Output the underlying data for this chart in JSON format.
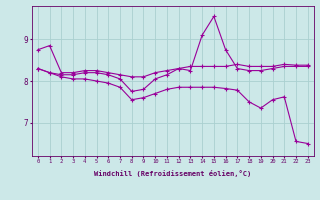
{
  "line1": {
    "x": [
      0,
      1,
      2,
      3,
      4,
      5,
      6,
      7,
      8,
      9,
      10,
      11,
      12,
      13,
      14,
      15,
      16,
      17,
      18,
      19,
      20,
      21,
      22,
      23
    ],
    "y": [
      8.75,
      8.85,
      8.2,
      8.2,
      8.25,
      8.25,
      8.2,
      8.15,
      8.1,
      8.1,
      8.2,
      8.25,
      8.3,
      8.35,
      8.35,
      8.35,
      8.35,
      8.4,
      8.35,
      8.35,
      8.35,
      8.4,
      8.38,
      8.38
    ]
  },
  "line2": {
    "x": [
      0,
      1,
      2,
      3,
      4,
      5,
      6,
      7,
      8,
      9,
      10,
      11,
      12,
      13,
      14,
      15,
      16,
      17,
      18,
      19,
      20,
      21,
      22,
      23
    ],
    "y": [
      8.3,
      8.2,
      8.15,
      8.15,
      8.2,
      8.2,
      8.15,
      8.05,
      7.75,
      7.8,
      8.05,
      8.15,
      8.3,
      8.25,
      9.1,
      9.55,
      8.75,
      8.3,
      8.25,
      8.25,
      8.3,
      8.35,
      8.35,
      8.35
    ]
  },
  "line3": {
    "x": [
      0,
      1,
      2,
      3,
      4,
      5,
      6,
      7,
      8,
      9,
      10,
      11,
      12,
      13,
      14,
      15,
      16,
      17,
      18,
      19,
      20,
      21,
      22,
      23
    ],
    "y": [
      8.3,
      8.2,
      8.1,
      8.05,
      8.05,
      8.0,
      7.95,
      7.85,
      7.55,
      7.6,
      7.7,
      7.8,
      7.85,
      7.85,
      7.85,
      7.85,
      7.82,
      7.78,
      7.5,
      7.35,
      7.55,
      7.62,
      6.55,
      6.5
    ]
  },
  "line_color": "#990099",
  "marker": "+",
  "markersize": 3.5,
  "linewidth": 0.8,
  "bg_color": "#cce8e8",
  "grid_color": "#aad0d0",
  "axis_color": "#660066",
  "xlabel": "Windchill (Refroidissement éolien,°C)",
  "yticks": [
    7,
    8,
    9
  ],
  "xticks": [
    0,
    1,
    2,
    3,
    4,
    5,
    6,
    7,
    8,
    9,
    10,
    11,
    12,
    13,
    14,
    15,
    16,
    17,
    18,
    19,
    20,
    21,
    22,
    23
  ],
  "xlim": [
    -0.5,
    23.5
  ],
  "ylim": [
    6.2,
    9.8
  ]
}
